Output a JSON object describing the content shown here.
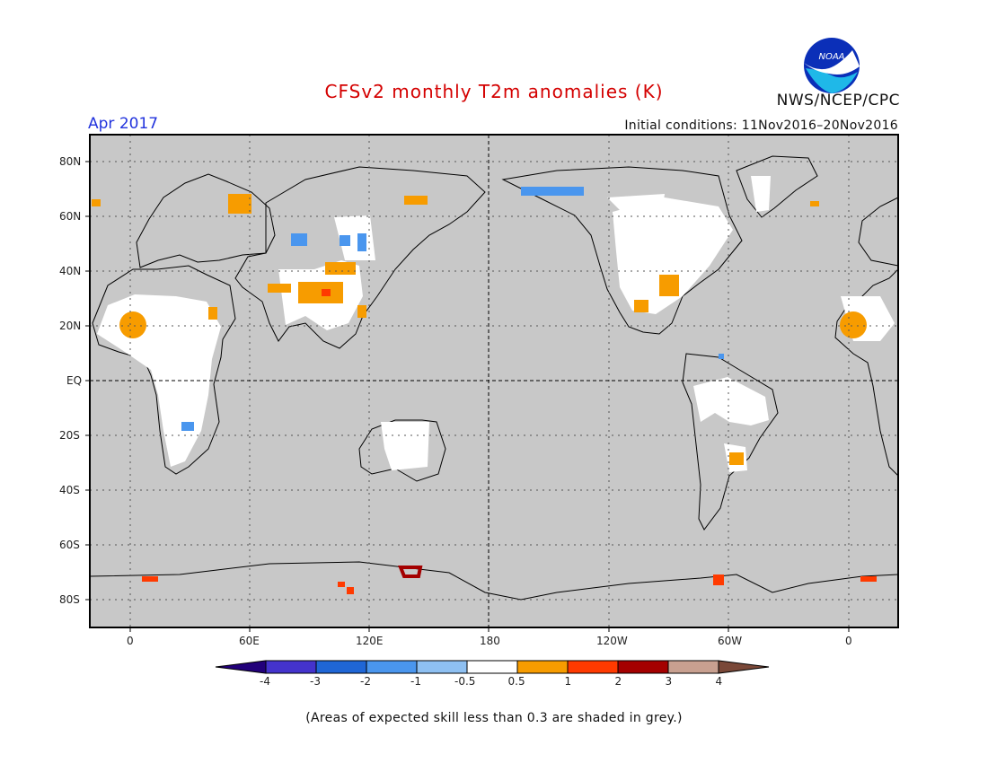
{
  "header": {
    "title": "CFSv2 monthly T2m anomalies (K)",
    "month": "Apr 2017",
    "agency": "NWS/NCEP/CPC",
    "initial_conditions": "Initial conditions: 11Nov2016–20Nov2016",
    "logo_text": "NOAA"
  },
  "map": {
    "lat_labels": [
      "80N",
      "60N",
      "40N",
      "20N",
      "EQ",
      "20S",
      "40S",
      "60S",
      "80S"
    ],
    "lon_labels": [
      "0",
      "60E",
      "120E",
      "180",
      "120W",
      "60W",
      "0"
    ],
    "ocean_color": "#c8c8c8",
    "land_no_skill_color": "#ffffff"
  },
  "legend": {
    "ticks": [
      "-4",
      "-3",
      "-2",
      "-1",
      "-0.5",
      "0.5",
      "1",
      "2",
      "3",
      "4"
    ],
    "colors": [
      "#22007a",
      "#4433cc",
      "#1f66d6",
      "#4a96ee",
      "#8ec0f2",
      "#ffffff",
      "#f79c00",
      "#ff3a00",
      "#a40000",
      "#c8a090",
      "#7a4838"
    ]
  },
  "caption": "(Areas of expected skill less than 0.3 are shaded in grey.)"
}
